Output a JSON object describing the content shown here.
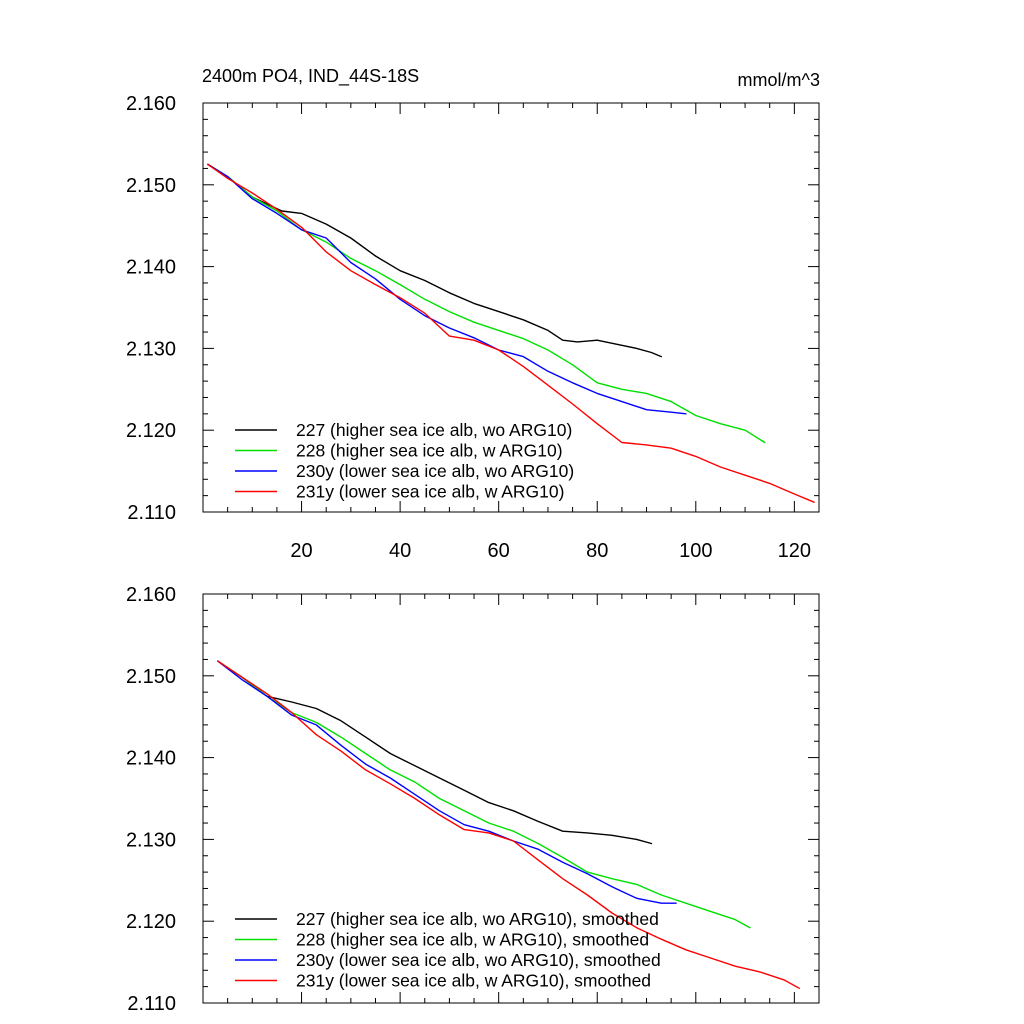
{
  "chart_data": [
    {
      "type": "line",
      "title_left": "2400m PO4, IND_44S-18S",
      "title_right": "mmol/m^3",
      "xlim": [
        0,
        125
      ],
      "ylim": [
        2.11,
        2.16
      ],
      "yticks": [
        "2.110",
        "2.120",
        "2.130",
        "2.140",
        "2.150",
        "2.160"
      ],
      "xticks": [
        "20",
        "40",
        "60",
        "80",
        "100",
        "120"
      ],
      "series": [
        {
          "name": "227 (higher sea ice alb, wo ARG10)",
          "color": "#000000",
          "x": [
            1,
            5,
            10,
            16,
            20,
            25,
            30,
            35,
            40,
            45,
            50,
            55,
            60,
            65,
            70,
            73,
            76,
            80,
            84,
            88,
            91,
            93
          ],
          "y": [
            2.1525,
            2.151,
            2.1485,
            2.1468,
            2.1465,
            2.1452,
            2.1435,
            2.1413,
            2.1395,
            2.1383,
            2.1368,
            2.1355,
            2.1345,
            2.1335,
            2.1322,
            2.131,
            2.1308,
            2.131,
            2.1305,
            2.13,
            2.1295,
            2.129
          ]
        },
        {
          "name": "228 (higher sea ice alb, w ARG10)",
          "color": "#00e000",
          "x": [
            1,
            5,
            10,
            15,
            20,
            25,
            30,
            35,
            40,
            45,
            50,
            55,
            60,
            65,
            70,
            75,
            80,
            85,
            90,
            95,
            100,
            105,
            110,
            114
          ],
          "y": [
            2.1525,
            2.151,
            2.1485,
            2.1468,
            2.1445,
            2.143,
            2.141,
            2.1395,
            2.1378,
            2.136,
            2.1345,
            2.1332,
            2.1322,
            2.1312,
            2.1298,
            2.128,
            2.1258,
            2.125,
            2.1245,
            2.1235,
            2.1218,
            2.1208,
            2.12,
            2.1185
          ]
        },
        {
          "name": "230y (lower sea ice alb, wo ARG10)",
          "color": "#0000ff",
          "x": [
            1,
            5,
            10,
            15,
            20,
            25,
            30,
            35,
            40,
            45,
            50,
            55,
            60,
            65,
            70,
            75,
            80,
            85,
            90,
            95,
            98
          ],
          "y": [
            2.1525,
            2.151,
            2.1483,
            2.1465,
            2.1445,
            2.1435,
            2.1405,
            2.1385,
            2.136,
            2.134,
            2.1325,
            2.1313,
            2.1298,
            2.129,
            2.1272,
            2.1258,
            2.1245,
            2.1235,
            2.1225,
            2.1222,
            2.122
          ]
        },
        {
          "name": "231y (lower sea ice alb, w ARG10)",
          "color": "#ff0000",
          "x": [
            1,
            5,
            10,
            15,
            20,
            25,
            30,
            35,
            40,
            45,
            50,
            55,
            60,
            65,
            70,
            75,
            80,
            85,
            90,
            95,
            100,
            105,
            110,
            115,
            120,
            124
          ],
          "y": [
            2.1525,
            2.1508,
            2.149,
            2.147,
            2.1448,
            2.1418,
            2.1395,
            2.1378,
            2.1362,
            2.1343,
            2.1315,
            2.131,
            2.1298,
            2.1278,
            2.1255,
            2.1232,
            2.1208,
            2.1185,
            2.1182,
            2.1178,
            2.1168,
            2.1155,
            2.1145,
            2.1135,
            2.1122,
            2.1112
          ]
        }
      ]
    },
    {
      "type": "line",
      "xlim": [
        0,
        125
      ],
      "ylim": [
        2.11,
        2.16
      ],
      "yticks": [
        "2.110",
        "2.120",
        "2.130",
        "2.140",
        "2.150",
        "2.160"
      ],
      "xticks": [],
      "series": [
        {
          "name": "227 (higher sea ice alb, wo ARG10), smoothed",
          "color": "#000000",
          "x": [
            3,
            8,
            13,
            18,
            23,
            28,
            33,
            38,
            43,
            48,
            53,
            58,
            63,
            68,
            73,
            78,
            83,
            88,
            91
          ],
          "y": [
            2.1518,
            2.1498,
            2.1475,
            2.1468,
            2.146,
            2.1445,
            2.1425,
            2.1405,
            2.139,
            2.1375,
            2.136,
            2.1345,
            2.1335,
            2.1322,
            2.131,
            2.1308,
            2.1305,
            2.13,
            2.1295
          ]
        },
        {
          "name": "228 (higher sea ice alb, w ARG10), smoothed",
          "color": "#00e000",
          "x": [
            3,
            8,
            13,
            18,
            23,
            28,
            33,
            38,
            43,
            48,
            53,
            58,
            63,
            68,
            73,
            78,
            83,
            88,
            93,
            98,
            103,
            108,
            111
          ],
          "y": [
            2.1518,
            2.1498,
            2.1475,
            2.1455,
            2.1443,
            2.1425,
            2.1405,
            2.1385,
            2.137,
            2.135,
            2.1335,
            2.132,
            2.131,
            2.1295,
            2.1278,
            2.126,
            2.1252,
            2.1245,
            2.1232,
            2.1222,
            2.1212,
            2.1202,
            2.1192
          ]
        },
        {
          "name": "230y (lower sea ice alb, wo ARG10), smoothed",
          "color": "#0000ff",
          "x": [
            3,
            8,
            13,
            18,
            23,
            28,
            33,
            38,
            43,
            48,
            53,
            58,
            63,
            68,
            73,
            78,
            83,
            88,
            93,
            96
          ],
          "y": [
            2.1518,
            2.1495,
            2.1475,
            2.1452,
            2.144,
            2.1415,
            2.1392,
            2.1375,
            2.1355,
            2.1335,
            2.1318,
            2.131,
            2.1298,
            2.1288,
            2.1272,
            2.1258,
            2.1242,
            2.1228,
            2.1222,
            2.1222
          ]
        },
        {
          "name": "231y (lower sea ice alb, w ARG10), smoothed",
          "color": "#ff0000",
          "x": [
            3,
            8,
            13,
            18,
            23,
            28,
            33,
            38,
            43,
            48,
            53,
            58,
            63,
            68,
            73,
            78,
            83,
            88,
            93,
            98,
            103,
            108,
            113,
            118,
            121
          ],
          "y": [
            2.1518,
            2.1498,
            2.1478,
            2.1455,
            2.1428,
            2.1408,
            2.1385,
            2.1368,
            2.135,
            2.133,
            2.1312,
            2.1308,
            2.1298,
            2.1275,
            2.1252,
            2.1232,
            2.121,
            2.1192,
            2.1178,
            2.1165,
            2.1155,
            2.1145,
            2.1138,
            2.1128,
            2.1118
          ]
        }
      ]
    }
  ]
}
